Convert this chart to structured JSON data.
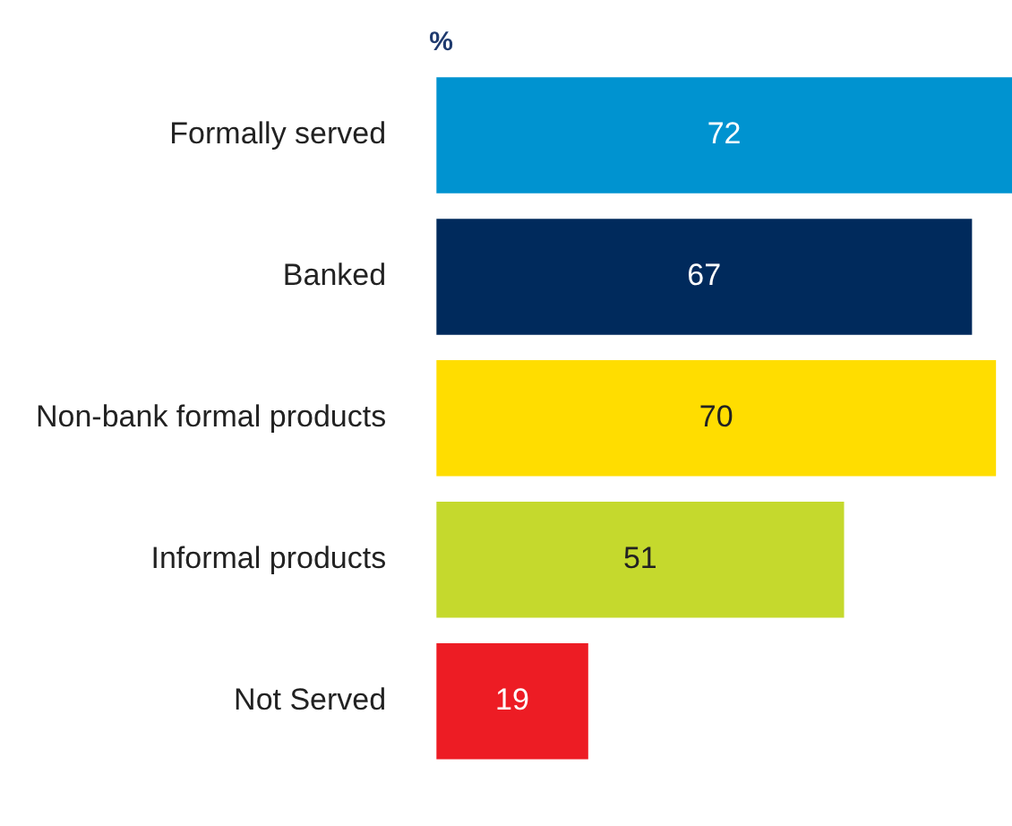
{
  "chart_data": {
    "type": "bar",
    "orientation": "horizontal",
    "xlabel": "%",
    "categories": [
      "Formally served",
      "Banked",
      "Non-bank formal products",
      "Informal products",
      "Not Served"
    ],
    "values": [
      72,
      67,
      70,
      51,
      19
    ],
    "colors": [
      "#0093d0",
      "#002a5c",
      "#ffdd00",
      "#c5d92d",
      "#ed1c24"
    ],
    "data_labels": true
  }
}
